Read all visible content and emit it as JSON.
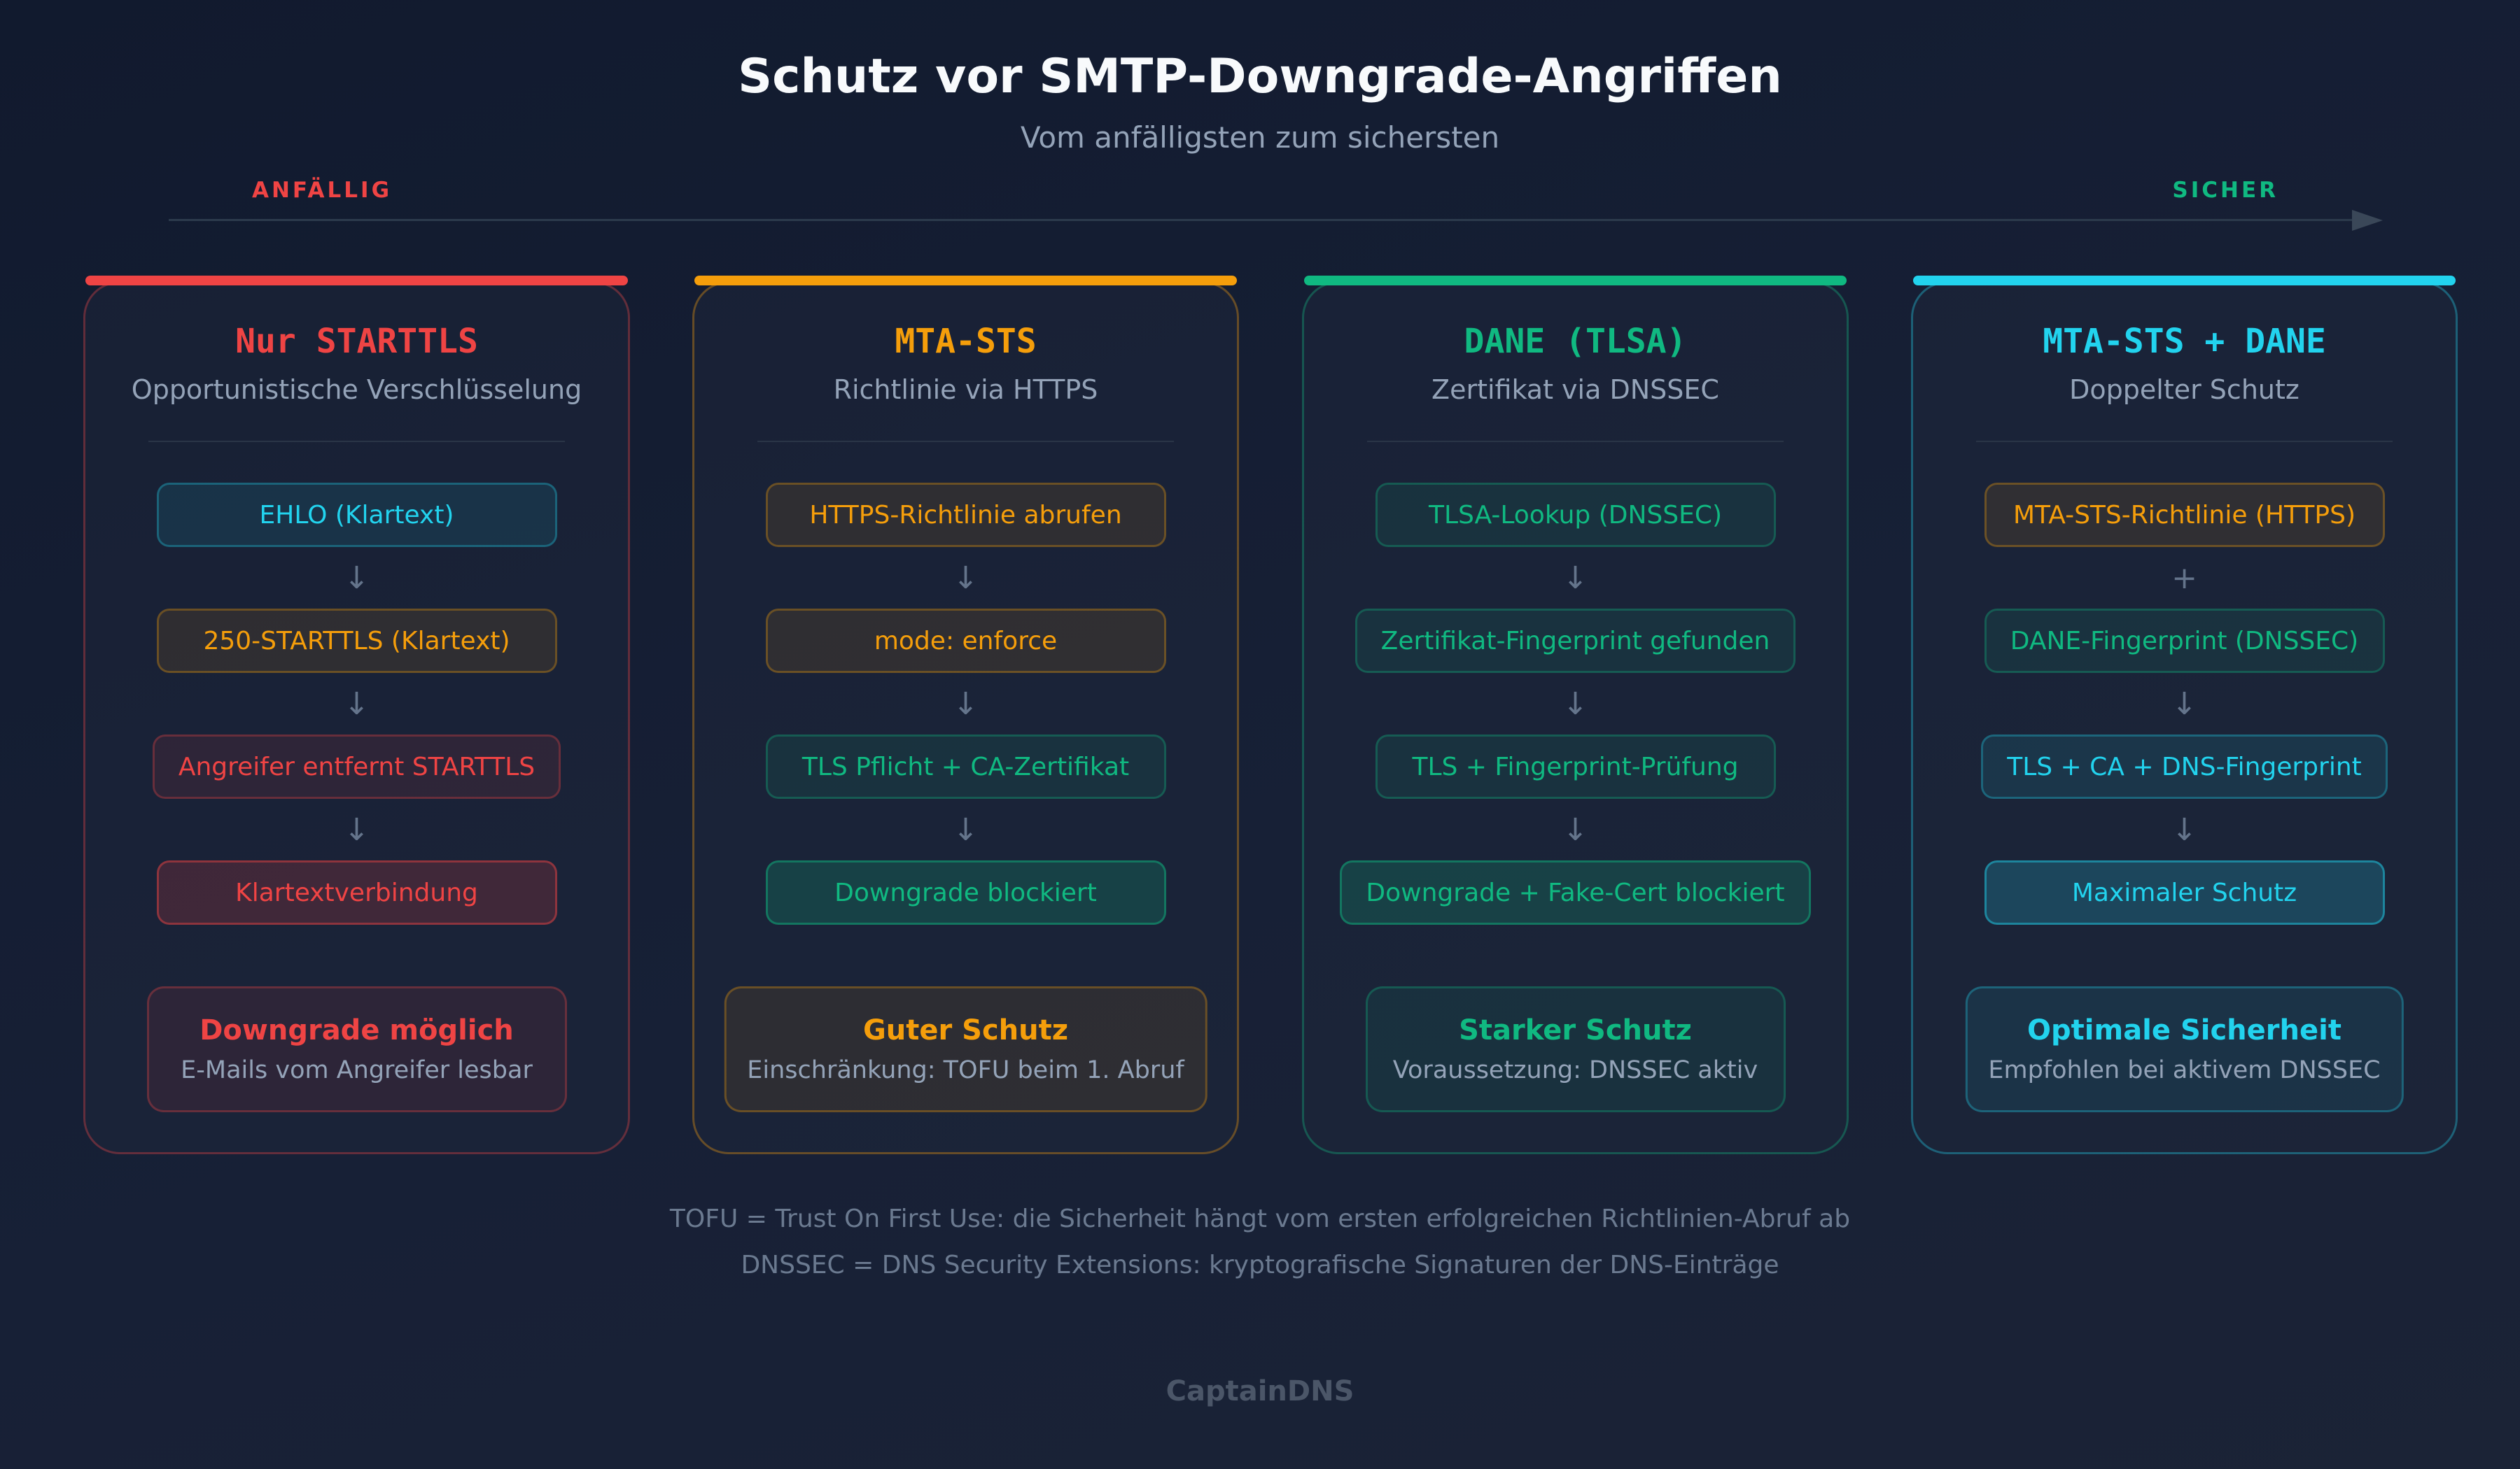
{
  "header": {
    "title": "Schutz vor SMTP-Downgrade-Angriffen",
    "subtitle": "Vom anfälligsten zum sichersten"
  },
  "scale": {
    "left": "ANFÄLLIG",
    "right": "SICHER",
    "left_color": "#ef4444",
    "right_color": "#10b981"
  },
  "colors": {
    "red": "#ef4444",
    "orange": "#f59e0b",
    "green": "#10b981",
    "cyan": "#22d3ee"
  },
  "columns": [
    {
      "title": "Nur STARTTLS",
      "subtitle": "Opportunistische Verschlüsselung",
      "color": "red",
      "steps": [
        {
          "label": "EHLO (Klartext)",
          "color": "cyan"
        },
        {
          "label": "250-STARTTLS (Klartext)",
          "color": "orange"
        },
        {
          "label": "Angreifer entfernt STARTTLS",
          "color": "red"
        },
        {
          "label": "Klartextverbindung",
          "color": "red",
          "strong": true
        }
      ],
      "connectors": [
        "↓",
        "↓",
        "↓"
      ],
      "result": {
        "title": "Downgrade möglich",
        "subtitle": "E-Mails vom Angreifer lesbar"
      }
    },
    {
      "title": "MTA-STS",
      "subtitle": "Richtlinie via HTTPS",
      "color": "orange",
      "steps": [
        {
          "label": "HTTPS-Richtlinie abrufen",
          "color": "orange"
        },
        {
          "label": "mode: enforce",
          "color": "orange"
        },
        {
          "label": "TLS Pflicht + CA-Zertifikat",
          "color": "green"
        },
        {
          "label": "Downgrade blockiert",
          "color": "green",
          "strong": true
        }
      ],
      "connectors": [
        "↓",
        "↓",
        "↓"
      ],
      "result": {
        "title": "Guter Schutz",
        "subtitle": "Einschränkung: TOFU beim 1. Abruf"
      }
    },
    {
      "title": "DANE (TLSA)",
      "subtitle": "Zertifikat via DNSSEC",
      "color": "green",
      "steps": [
        {
          "label": "TLSA-Lookup (DNSSEC)",
          "color": "green"
        },
        {
          "label": "Zertifikat-Fingerprint gefunden",
          "color": "green"
        },
        {
          "label": "TLS + Fingerprint-Prüfung",
          "color": "green"
        },
        {
          "label": "Downgrade + Fake-Cert blockiert",
          "color": "green",
          "strong": true
        }
      ],
      "connectors": [
        "↓",
        "↓",
        "↓"
      ],
      "result": {
        "title": "Starker Schutz",
        "subtitle": "Voraussetzung: DNSSEC aktiv"
      }
    },
    {
      "title": "MTA-STS + DANE",
      "subtitle": "Doppelter Schutz",
      "color": "cyan",
      "steps": [
        {
          "label": "MTA-STS-Richtlinie (HTTPS)",
          "color": "orange"
        },
        {
          "label": "DANE-Fingerprint (DNSSEC)",
          "color": "green"
        },
        {
          "label": "TLS + CA + DNS-Fingerprint",
          "color": "cyan"
        },
        {
          "label": "Maximaler Schutz",
          "color": "cyan",
          "strong": true
        }
      ],
      "connectors": [
        "+",
        "↓",
        "↓"
      ],
      "result": {
        "title": "Optimale Sicherheit",
        "subtitle": "Empfohlen bei aktivem DNSSEC"
      }
    }
  ],
  "notes": [
    "TOFU = Trust On First Use: die Sicherheit hängt vom ersten erfolgreichen Richtlinien-Abruf ab",
    "DNSSEC = DNS Security Extensions: kryptografische Signaturen der DNS-Einträge"
  ],
  "brand": "CaptainDNS"
}
